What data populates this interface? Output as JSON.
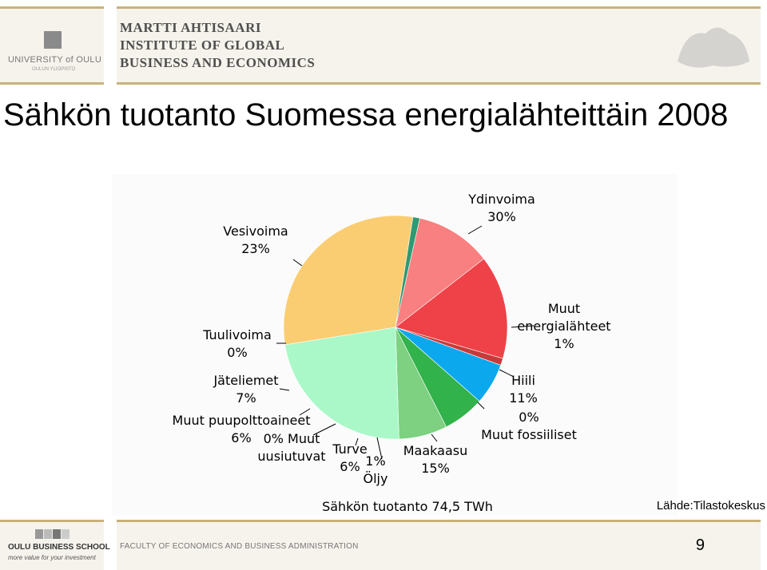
{
  "header": {
    "university": "UNIVERSITY of OULU",
    "university_sub": "OULUN YLIOPISTO",
    "institute_lines": [
      "MARTTI AHTISAARI",
      "INSTITUTE OF GLOBAL",
      "BUSINESS AND ECONOMICS"
    ]
  },
  "title": "Sähkön tuotanto Suomessa energialähteittäin 2008",
  "chart_data": {
    "type": "pie",
    "caption": "Sähkön tuotanto 74,5 TWh",
    "slices": [
      {
        "name": "Ydinvoima",
        "value": 30,
        "label": "30%",
        "color": "#fbcd72"
      },
      {
        "name": "Muut energialähteet",
        "value": 1,
        "label": "1%",
        "color": "#2f9a72"
      },
      {
        "name": "Hiili",
        "value": 11,
        "label": "11%",
        "color": "#f98080"
      },
      {
        "name": "Muut fossiiliset",
        "value": 0,
        "label": "0%",
        "color": "#f0a0a0"
      },
      {
        "name": "Maakaasu",
        "value": 15,
        "label": "15%",
        "color": "#ef4148"
      },
      {
        "name": "Öljy",
        "value": 1,
        "label": "1%",
        "color": "#c83a3a"
      },
      {
        "name": "Turve",
        "value": 6,
        "label": "6%",
        "color": "#0ba8ee"
      },
      {
        "name": "Muut uusiutuvat",
        "value": 0,
        "label": "0%",
        "color": "#2a8a8a"
      },
      {
        "name": "Muut puupolttoaineet",
        "value": 6,
        "label": "6%",
        "color": "#32b24b"
      },
      {
        "name": "Jäteliemet",
        "value": 7,
        "label": "7%",
        "color": "#7dd181"
      },
      {
        "name": "Tuulivoima",
        "value": 0,
        "label": "0%",
        "color": "#3a8ed8"
      },
      {
        "name": "Vesivoima",
        "value": 23,
        "label": "23%",
        "color": "#aaf8c8"
      }
    ]
  },
  "source": "Lähde:Tilastokeskus",
  "footer": {
    "school": "OULU BUSINESS SCHOOL",
    "tagline": "more value for your investment",
    "faculty": "FACULTY OF ECONOMICS AND BUSINESS ADMINISTRATION",
    "page": "9"
  }
}
